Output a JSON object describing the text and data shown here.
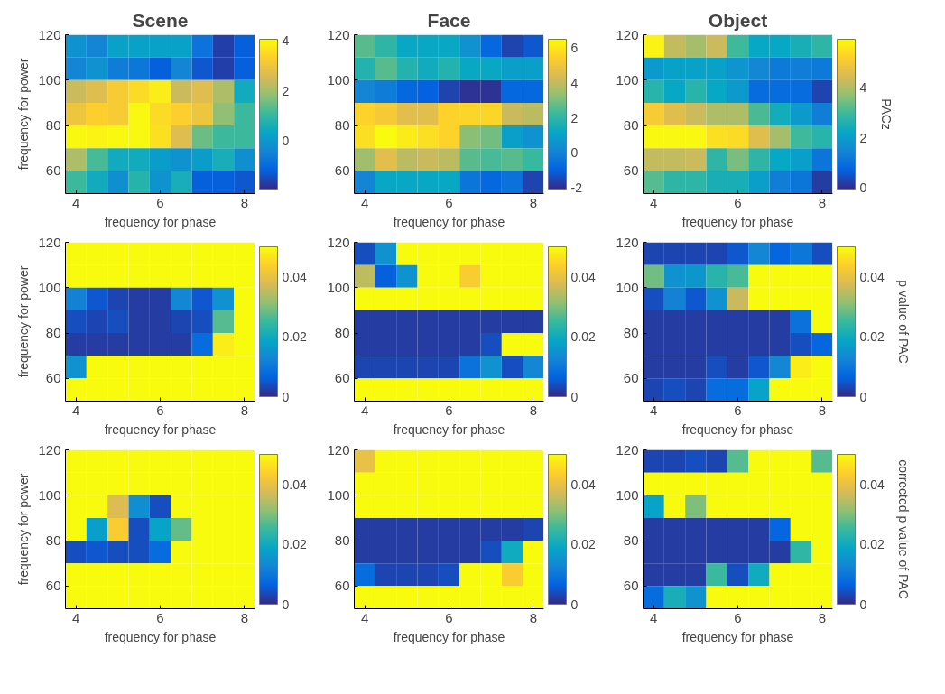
{
  "chart_data": [
    {
      "type": "heatmap",
      "title": "Scene",
      "xlabel": "frequency for phase",
      "ylabel": "frequency for power",
      "categories": [
        "4",
        null,
        null,
        null,
        "6",
        null,
        null,
        null,
        "8"
      ],
      "ylim": [
        50,
        120
      ],
      "yticks": [
        60,
        80,
        100,
        120
      ],
      "clim": [
        -1.9,
        4.05
      ],
      "cticks": [
        0,
        2,
        4
      ],
      "cells": [
        [
          -0.1,
          -0.4,
          0.2,
          0.2,
          0.2,
          0.2,
          -0.8,
          -1.6,
          -1.2
        ],
        [
          -0.4,
          -0.1,
          -0.6,
          -0.7,
          -1.2,
          -0.4,
          -1.3,
          -1.6,
          -1.2
        ],
        [
          2.4,
          2.7,
          3.2,
          3.5,
          3.8,
          2.4,
          2.7,
          2.1,
          0.5
        ],
        [
          3.0,
          3.3,
          3.2,
          4.0,
          3.5,
          3.3,
          3.0,
          1.8,
          1.1
        ],
        [
          4.0,
          3.9,
          4.0,
          4.0,
          3.6,
          2.7,
          1.5,
          1.1,
          1.1
        ],
        [
          2.1,
          1.2,
          0.5,
          0.5,
          0.1,
          -0.1,
          0.1,
          0.6,
          -0.2
        ],
        [
          1.1,
          0.5,
          -0.2,
          0.8,
          -0.1,
          0.6,
          -1.2,
          -1.2,
          -1.3
        ]
      ]
    },
    {
      "type": "heatmap",
      "title": "Face",
      "xlabel": "frequency for phase",
      "categories": [
        "4",
        null,
        null,
        null,
        "6",
        null,
        null,
        null,
        "8"
      ],
      "ylim": [
        50,
        120
      ],
      "yticks": [
        60,
        80,
        100,
        120
      ],
      "clim": [
        -2.07,
        6.5
      ],
      "cticks": [
        -2,
        0,
        2,
        4,
        6
      ],
      "cells": [
        [
          2.6,
          2.0,
          1.2,
          1.2,
          1.2,
          0.5,
          -0.8,
          -1.6,
          -1.2
        ],
        [
          1.8,
          2.6,
          1.8,
          1.4,
          1.8,
          1.2,
          1.2,
          0.9,
          0.9
        ],
        [
          0.1,
          -0.2,
          -0.8,
          -1.0,
          -1.6,
          -1.9,
          -1.9,
          -0.8,
          -0.8
        ],
        [
          5.5,
          5.2,
          4.6,
          4.6,
          5.5,
          5.6,
          5.6,
          4.1,
          3.9
        ],
        [
          5.8,
          6.5,
          6.1,
          5.8,
          5.5,
          3.2,
          2.9,
          0.9,
          0.5
        ],
        [
          3.5,
          4.6,
          3.9,
          4.1,
          3.9,
          2.6,
          2.4,
          2.6,
          2.2
        ],
        [
          0.1,
          1.2,
          1.2,
          1.2,
          1.2,
          -0.4,
          -0.8,
          -0.5,
          -1.6
        ]
      ]
    },
    {
      "type": "heatmap",
      "title": "Object",
      "xlabel": "frequency for phase",
      "clabel": "PACz",
      "categories": [
        "4",
        null,
        null,
        null,
        "6",
        null,
        null,
        null,
        "8"
      ],
      "ylim": [
        50,
        120
      ],
      "yticks": [
        60,
        80,
        100,
        120
      ],
      "clim": [
        -0.05,
        5.95
      ],
      "cticks": [
        0,
        2,
        4
      ],
      "cells": [
        [
          5.8,
          4.2,
          3.9,
          4.3,
          3.0,
          2.2,
          2.2,
          2.5,
          2.8
        ],
        [
          1.9,
          2.1,
          2.1,
          2.1,
          1.8,
          1.5,
          1.2,
          1.3,
          1.2
        ],
        [
          2.7,
          2.2,
          2.7,
          2.2,
          1.9,
          0.9,
          0.9,
          0.9,
          0.3
        ],
        [
          5.1,
          4.6,
          4.3,
          4.0,
          4.0,
          3.1,
          2.4,
          1.9,
          1.3
        ],
        [
          5.9,
          5.9,
          5.9,
          5.5,
          5.4,
          4.6,
          3.9,
          3.0,
          2.7
        ],
        [
          4.2,
          4.2,
          4.3,
          2.8,
          3.5,
          2.8,
          2.2,
          2.0,
          1.1
        ],
        [
          3.2,
          2.8,
          2.8,
          2.5,
          2.5,
          2.0,
          1.3,
          1.1,
          0.2
        ]
      ]
    },
    {
      "type": "heatmap",
      "xlabel": "frequency for phase",
      "ylabel": "frequency for power",
      "categories": [
        "4",
        null,
        null,
        null,
        "6",
        null,
        null,
        null,
        "8"
      ],
      "ylim": [
        50,
        120
      ],
      "yticks": [
        60,
        80,
        100,
        120
      ],
      "clim": [
        0,
        0.05
      ],
      "cticks": [
        0,
        0.02,
        0.04
      ],
      "cells": [
        [
          0.05,
          0.05,
          0.05,
          0.05,
          0.05,
          0.05,
          0.05,
          0.05,
          0.05
        ],
        [
          0.05,
          0.05,
          0.05,
          0.05,
          0.05,
          0.05,
          0.05,
          0.05,
          0.05
        ],
        [
          0.012,
          0.005,
          0.003,
          0.002,
          0.002,
          0.013,
          0.005,
          0.015,
          0.05
        ],
        [
          0.004,
          0.003,
          0.004,
          0.002,
          0.002,
          0.003,
          0.004,
          0.027,
          0.05
        ],
        [
          0.002,
          0.002,
          0.002,
          0.002,
          0.002,
          0.002,
          0.008,
          0.048,
          0.05
        ],
        [
          0.015,
          0.05,
          0.05,
          0.05,
          0.05,
          0.05,
          0.05,
          0.05,
          0.05
        ],
        [
          0.05,
          0.05,
          0.05,
          0.05,
          0.05,
          0.05,
          0.05,
          0.05,
          0.05
        ]
      ]
    },
    {
      "type": "heatmap",
      "xlabel": "frequency for phase",
      "categories": [
        "4",
        null,
        null,
        null,
        "6",
        null,
        null,
        null,
        "8"
      ],
      "ylim": [
        50,
        120
      ],
      "yticks": [
        60,
        80,
        100,
        120
      ],
      "clim": [
        0,
        0.05
      ],
      "cticks": [
        0,
        0.02,
        0.04
      ],
      "cells": [
        [
          0.004,
          0.015,
          0.05,
          0.05,
          0.05,
          0.05,
          0.05,
          0.05,
          0.05
        ],
        [
          0.035,
          0.006,
          0.015,
          0.05,
          0.05,
          0.043,
          0.05,
          0.05,
          0.05
        ],
        [
          0.05,
          0.05,
          0.05,
          0.05,
          0.05,
          0.05,
          0.05,
          0.05,
          0.05
        ],
        [
          0.002,
          0.002,
          0.002,
          0.002,
          0.002,
          0.002,
          0.002,
          0.002,
          0.002
        ],
        [
          0.002,
          0.002,
          0.002,
          0.002,
          0.002,
          0.002,
          0.004,
          0.05,
          0.05
        ],
        [
          0.003,
          0.003,
          0.003,
          0.003,
          0.003,
          0.009,
          0.015,
          0.004,
          0.013
        ],
        [
          0.05,
          0.05,
          0.05,
          0.05,
          0.05,
          0.05,
          0.05,
          0.05,
          0.05
        ]
      ]
    },
    {
      "type": "heatmap",
      "xlabel": "frequency for phase",
      "clabel": "p value of PAC",
      "categories": [
        "4",
        null,
        null,
        null,
        "6",
        null,
        null,
        null,
        "8"
      ],
      "ylim": [
        50,
        120
      ],
      "yticks": [
        60,
        80,
        100,
        120
      ],
      "clim": [
        0,
        0.05
      ],
      "cticks": [
        0,
        0.02,
        0.04
      ],
      "cells": [
        [
          0.003,
          0.003,
          0.003,
          0.003,
          0.005,
          0.013,
          0.007,
          0.01,
          0.004
        ],
        [
          0.029,
          0.015,
          0.016,
          0.023,
          0.026,
          0.05,
          0.05,
          0.05,
          0.05
        ],
        [
          0.004,
          0.012,
          0.005,
          0.015,
          0.036,
          0.05,
          0.05,
          0.05,
          0.05
        ],
        [
          0.002,
          0.002,
          0.002,
          0.002,
          0.002,
          0.002,
          0.002,
          0.009,
          0.05
        ],
        [
          0.002,
          0.002,
          0.002,
          0.002,
          0.002,
          0.002,
          0.002,
          0.004,
          0.007
        ],
        [
          0.002,
          0.002,
          0.002,
          0.004,
          0.002,
          0.005,
          0.013,
          0.048,
          0.05
        ],
        [
          0.003,
          0.004,
          0.003,
          0.008,
          0.008,
          0.018,
          0.05,
          0.05,
          0.05
        ]
      ]
    },
    {
      "type": "heatmap",
      "xlabel": "frequency for phase",
      "ylabel": "frequency for power",
      "categories": [
        "4",
        null,
        null,
        null,
        "6",
        null,
        null,
        null,
        "8"
      ],
      "ylim": [
        50,
        120
      ],
      "yticks": [
        60,
        80,
        100,
        120
      ],
      "clim": [
        0,
        0.05
      ],
      "cticks": [
        0,
        0.02,
        0.04
      ],
      "cells": [
        [
          0.05,
          0.05,
          0.05,
          0.05,
          0.05,
          0.05,
          0.05,
          0.05,
          0.05
        ],
        [
          0.05,
          0.05,
          0.05,
          0.05,
          0.05,
          0.05,
          0.05,
          0.05,
          0.05
        ],
        [
          0.05,
          0.05,
          0.038,
          0.014,
          0.004,
          0.05,
          0.05,
          0.05,
          0.05
        ],
        [
          0.05,
          0.017,
          0.043,
          0.004,
          0.018,
          0.028,
          0.05,
          0.05,
          0.05
        ],
        [
          0.004,
          0.005,
          0.004,
          0.004,
          0.008,
          0.05,
          0.05,
          0.05,
          0.05
        ],
        [
          0.05,
          0.05,
          0.05,
          0.05,
          0.05,
          0.05,
          0.05,
          0.05,
          0.05
        ],
        [
          0.05,
          0.05,
          0.05,
          0.05,
          0.05,
          0.05,
          0.05,
          0.05,
          0.05
        ]
      ]
    },
    {
      "type": "heatmap",
      "xlabel": "frequency for phase",
      "categories": [
        "4",
        null,
        null,
        null,
        "6",
        null,
        null,
        null,
        "8"
      ],
      "ylim": [
        50,
        120
      ],
      "yticks": [
        60,
        80,
        100,
        120
      ],
      "clim": [
        0,
        0.05
      ],
      "cticks": [
        0,
        0.02,
        0.04
      ],
      "cells": [
        [
          0.04,
          0.05,
          0.05,
          0.05,
          0.05,
          0.05,
          0.05,
          0.05,
          0.05
        ],
        [
          0.05,
          0.05,
          0.05,
          0.05,
          0.05,
          0.05,
          0.05,
          0.05,
          0.05
        ],
        [
          0.05,
          0.05,
          0.05,
          0.05,
          0.05,
          0.05,
          0.05,
          0.05,
          0.05
        ],
        [
          0.002,
          0.002,
          0.002,
          0.002,
          0.002,
          0.002,
          0.002,
          0.002,
          0.003
        ],
        [
          0.002,
          0.002,
          0.002,
          0.002,
          0.002,
          0.002,
          0.004,
          0.02,
          0.05
        ],
        [
          0.008,
          0.003,
          0.003,
          0.003,
          0.004,
          0.05,
          0.05,
          0.043,
          0.05
        ],
        [
          0.05,
          0.05,
          0.05,
          0.05,
          0.05,
          0.05,
          0.05,
          0.05,
          0.05
        ]
      ]
    },
    {
      "type": "heatmap",
      "xlabel": "frequency for phase",
      "clabel": "corrected p value of PAC",
      "categories": [
        "4",
        null,
        null,
        null,
        "6",
        null,
        null,
        null,
        "8"
      ],
      "ylim": [
        50,
        120
      ],
      "yticks": [
        60,
        80,
        100,
        120
      ],
      "clim": [
        0,
        0.05
      ],
      "cticks": [
        0,
        0.02,
        0.04
      ],
      "cells": [
        [
          0.003,
          0.003,
          0.004,
          0.003,
          0.027,
          0.05,
          0.05,
          0.05,
          0.027
        ],
        [
          0.05,
          0.05,
          0.05,
          0.05,
          0.05,
          0.05,
          0.05,
          0.05,
          0.05
        ],
        [
          0.018,
          0.05,
          0.03,
          0.05,
          0.05,
          0.05,
          0.05,
          0.05,
          0.05
        ],
        [
          0.002,
          0.002,
          0.002,
          0.002,
          0.002,
          0.002,
          0.007,
          0.05,
          0.05
        ],
        [
          0.002,
          0.002,
          0.002,
          0.002,
          0.002,
          0.002,
          0.002,
          0.024,
          0.05
        ],
        [
          0.002,
          0.002,
          0.002,
          0.025,
          0.004,
          0.02,
          0.05,
          0.05,
          0.05
        ],
        [
          0.008,
          0.021,
          0.015,
          0.05,
          0.05,
          0.05,
          0.05,
          0.05,
          0.05
        ]
      ]
    }
  ]
}
